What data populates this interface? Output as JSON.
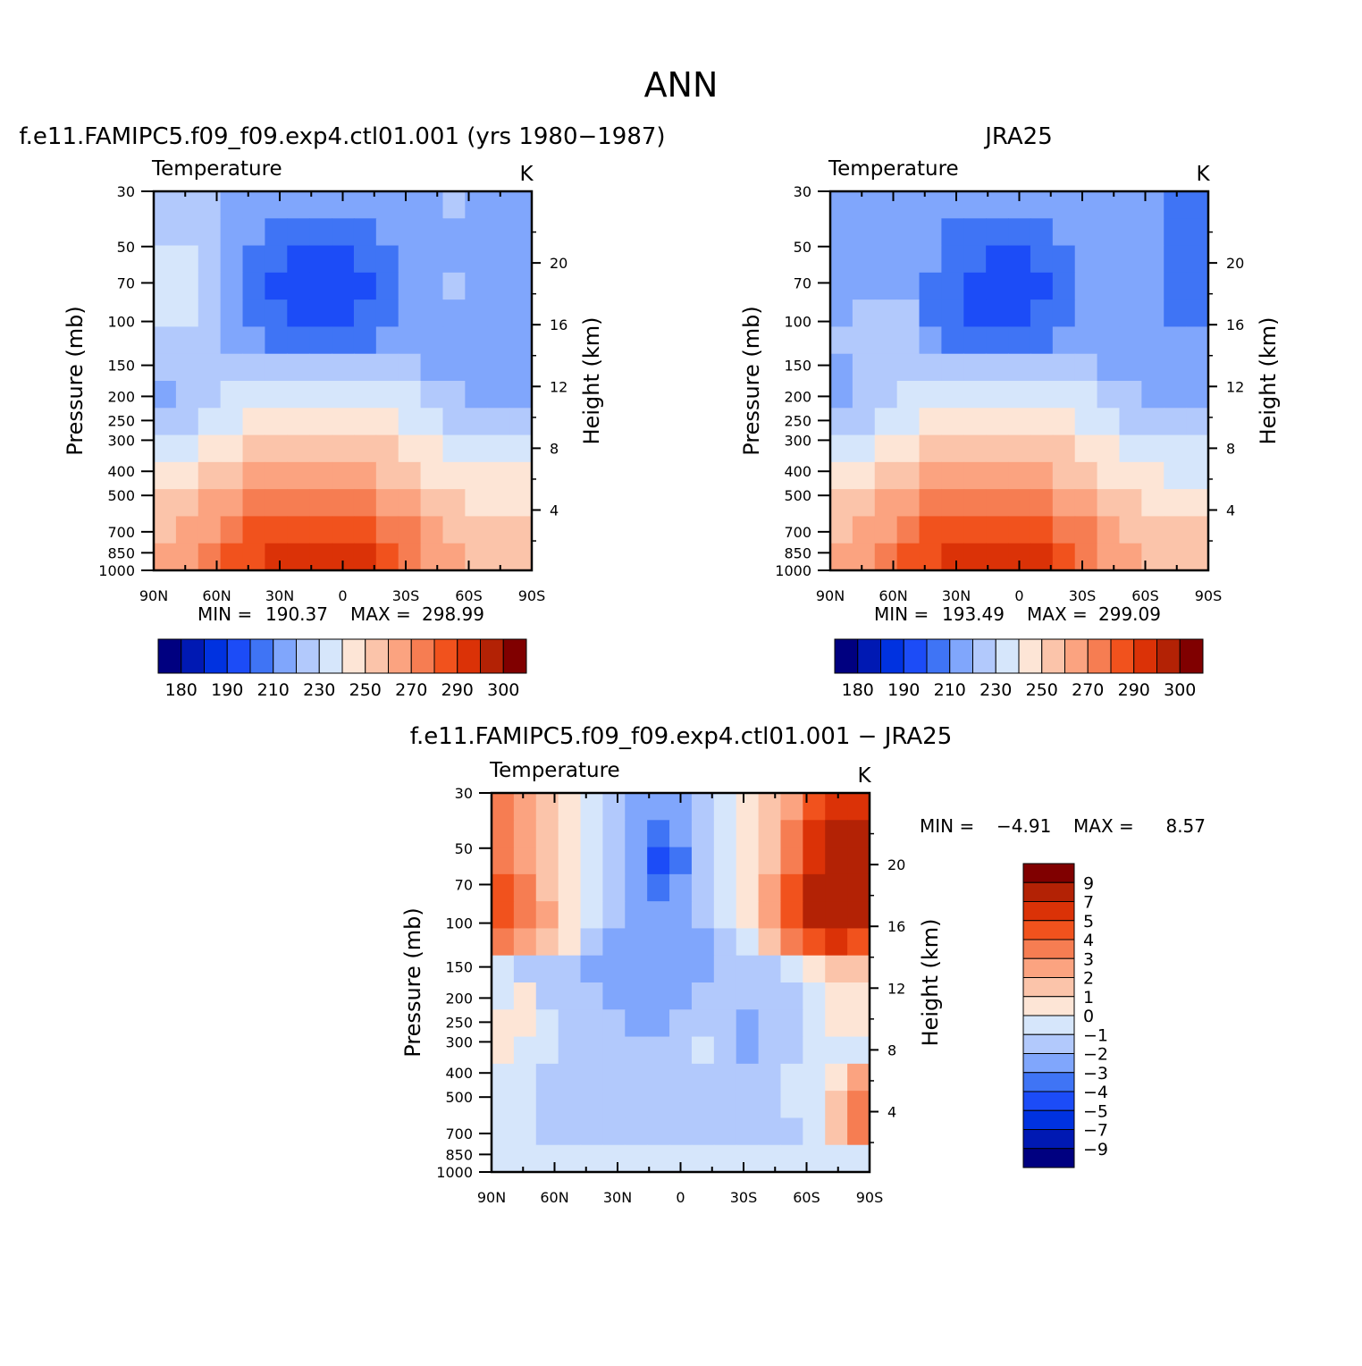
{
  "figure_title": "ANN",
  "colors": {
    "abs_levels": [
      "#000080",
      "#0019b3",
      "#0032e0",
      "#1c4cf7",
      "#3f74f5",
      "#80a6fc",
      "#b2c9fc",
      "#d6e6fb",
      "#fde5d6",
      "#fbc4aa",
      "#fba380",
      "#f67d52",
      "#f1521d",
      "#db3207",
      "#b32205",
      "#800000"
    ],
    "diff_levels": [
      "#000080",
      "#0019b3",
      "#0032e0",
      "#1c4cf7",
      "#3f74f5",
      "#80a6fc",
      "#b2c9fc",
      "#d6e6fb",
      "#fde5d6",
      "#fbc4aa",
      "#fba380",
      "#f67d52",
      "#f1521d",
      "#db3207",
      "#b32205",
      "#800000"
    ]
  },
  "chart_data": [
    {
      "type": "heatmap",
      "title": "f.e11.FAMIPC5.f09_f09.exp4.ctl01.001 (yrs 1980−1987)",
      "variable": "Temperature",
      "units": "K",
      "xlabel": "",
      "ylabel": "Pressure (mb)",
      "ylabel_right": "Height (km)",
      "x_ticks": [
        "90N",
        "60N",
        "30N",
        "0",
        "30S",
        "60S",
        "90S"
      ],
      "y_ticks": [
        "30",
        "50",
        "70",
        "100",
        "150",
        "200",
        "250",
        "300",
        "400",
        "500",
        "700",
        "850",
        "1000"
      ],
      "y_ticks_right": [
        "4",
        "8",
        "12",
        "16",
        "20"
      ],
      "min_label": "MIN =",
      "min_value": "190.37",
      "max_label": "MAX =",
      "max_value": "298.99",
      "colorbar_labels": [
        "180",
        "190",
        "210",
        "230",
        "250",
        "270",
        "290",
        "300"
      ],
      "field": [
        [
          6,
          6,
          6,
          5,
          5,
          5,
          5,
          5,
          5,
          5,
          5,
          5,
          5,
          6,
          5,
          5,
          5
        ],
        [
          6,
          6,
          6,
          5,
          5,
          4,
          4,
          4,
          4,
          4,
          5,
          5,
          5,
          5,
          5,
          5,
          5
        ],
        [
          7,
          7,
          6,
          5,
          4,
          4,
          3,
          3,
          3,
          4,
          4,
          5,
          5,
          5,
          5,
          5,
          5
        ],
        [
          7,
          7,
          6,
          5,
          4,
          3,
          3,
          3,
          3,
          3,
          4,
          5,
          5,
          6,
          5,
          5,
          5
        ],
        [
          7,
          7,
          6,
          5,
          4,
          4,
          3,
          3,
          3,
          4,
          4,
          5,
          5,
          5,
          5,
          5,
          5
        ],
        [
          6,
          6,
          6,
          5,
          5,
          4,
          4,
          4,
          4,
          4,
          5,
          5,
          5,
          5,
          5,
          5,
          5
        ],
        [
          6,
          6,
          6,
          6,
          6,
          6,
          6,
          6,
          6,
          6,
          6,
          6,
          5,
          5,
          5,
          5,
          5
        ],
        [
          5,
          6,
          6,
          7,
          7,
          7,
          7,
          7,
          7,
          7,
          7,
          7,
          6,
          6,
          5,
          5,
          5
        ],
        [
          6,
          6,
          7,
          7,
          8,
          8,
          8,
          8,
          8,
          8,
          8,
          7,
          7,
          6,
          6,
          6,
          6
        ],
        [
          7,
          7,
          8,
          8,
          9,
          9,
          9,
          9,
          9,
          9,
          9,
          8,
          8,
          7,
          7,
          7,
          7
        ],
        [
          8,
          8,
          9,
          9,
          10,
          10,
          10,
          10,
          10,
          10,
          9,
          9,
          8,
          8,
          8,
          8,
          8
        ],
        [
          9,
          9,
          10,
          10,
          11,
          11,
          11,
          11,
          11,
          11,
          10,
          10,
          9,
          9,
          8,
          8,
          8
        ],
        [
          9,
          10,
          10,
          11,
          12,
          12,
          12,
          12,
          12,
          12,
          11,
          11,
          10,
          9,
          9,
          9,
          9
        ],
        [
          10,
          10,
          11,
          12,
          12,
          13,
          13,
          13,
          13,
          13,
          12,
          11,
          10,
          10,
          9,
          9,
          9
        ]
      ]
    },
    {
      "type": "heatmap",
      "title": "JRA25",
      "variable": "Temperature",
      "units": "K",
      "xlabel": "",
      "ylabel": "Pressure (mb)",
      "ylabel_right": "Height (km)",
      "x_ticks": [
        "90N",
        "60N",
        "30N",
        "0",
        "30S",
        "60S",
        "90S"
      ],
      "y_ticks": [
        "30",
        "50",
        "70",
        "100",
        "150",
        "200",
        "250",
        "300",
        "400",
        "500",
        "700",
        "850",
        "1000"
      ],
      "y_ticks_right": [
        "4",
        "8",
        "12",
        "16",
        "20"
      ],
      "min_label": "MIN =",
      "min_value": "193.49",
      "max_label": "MAX =",
      "max_value": "299.09",
      "colorbar_labels": [
        "180",
        "190",
        "210",
        "230",
        "250",
        "270",
        "290",
        "300"
      ],
      "field": [
        [
          5,
          5,
          5,
          5,
          5,
          5,
          5,
          5,
          5,
          5,
          5,
          5,
          5,
          5,
          5,
          4,
          4
        ],
        [
          5,
          5,
          5,
          5,
          5,
          4,
          4,
          4,
          4,
          4,
          5,
          5,
          5,
          5,
          5,
          4,
          4
        ],
        [
          5,
          5,
          5,
          5,
          5,
          4,
          4,
          3,
          3,
          4,
          4,
          5,
          5,
          5,
          5,
          4,
          4
        ],
        [
          5,
          5,
          5,
          5,
          4,
          4,
          3,
          3,
          3,
          3,
          4,
          5,
          5,
          5,
          5,
          4,
          4
        ],
        [
          5,
          6,
          6,
          6,
          4,
          4,
          3,
          3,
          3,
          4,
          4,
          5,
          5,
          5,
          5,
          4,
          4
        ],
        [
          6,
          6,
          6,
          6,
          5,
          4,
          4,
          4,
          4,
          4,
          5,
          5,
          5,
          5,
          5,
          5,
          5
        ],
        [
          5,
          6,
          6,
          6,
          6,
          6,
          6,
          6,
          6,
          6,
          6,
          6,
          5,
          5,
          5,
          5,
          5
        ],
        [
          5,
          6,
          6,
          7,
          7,
          7,
          7,
          7,
          7,
          7,
          7,
          7,
          6,
          6,
          5,
          5,
          5
        ],
        [
          6,
          6,
          7,
          7,
          8,
          8,
          8,
          8,
          8,
          8,
          8,
          7,
          7,
          6,
          6,
          6,
          6
        ],
        [
          7,
          7,
          8,
          8,
          9,
          9,
          9,
          9,
          9,
          9,
          9,
          8,
          8,
          7,
          7,
          7,
          7
        ],
        [
          8,
          8,
          9,
          9,
          10,
          10,
          10,
          10,
          10,
          10,
          9,
          9,
          8,
          8,
          8,
          7,
          7
        ],
        [
          9,
          9,
          10,
          10,
          11,
          11,
          11,
          11,
          11,
          11,
          10,
          10,
          9,
          9,
          8,
          8,
          8
        ],
        [
          9,
          10,
          10,
          11,
          12,
          12,
          12,
          12,
          12,
          12,
          11,
          11,
          10,
          9,
          9,
          9,
          9
        ],
        [
          10,
          10,
          11,
          12,
          12,
          13,
          13,
          13,
          13,
          13,
          12,
          11,
          10,
          10,
          9,
          9,
          9
        ]
      ]
    },
    {
      "type": "heatmap",
      "title": "f.e11.FAMIPC5.f09_f09.exp4.ctl01.001 − JRA25",
      "variable": "Temperature",
      "units": "K",
      "xlabel": "",
      "ylabel": "Pressure (mb)",
      "ylabel_right": "Height (km)",
      "x_ticks": [
        "90N",
        "60N",
        "30N",
        "0",
        "30S",
        "60S",
        "90S"
      ],
      "y_ticks": [
        "30",
        "50",
        "70",
        "100",
        "150",
        "200",
        "250",
        "300",
        "400",
        "500",
        "700",
        "850",
        "1000"
      ],
      "y_ticks_right": [
        "4",
        "8",
        "12",
        "16",
        "20"
      ],
      "min_label": "MIN =",
      "min_value": "−4.91",
      "max_label": "MAX =",
      "max_value": "8.57",
      "colorbar_labels": [
        "9",
        "7",
        "5",
        "4",
        "3",
        "2",
        "1",
        "0",
        "−1",
        "−2",
        "−3",
        "−4",
        "−5",
        "−7",
        "−9"
      ],
      "field": [
        [
          11,
          10,
          9,
          8,
          7,
          6,
          5,
          5,
          5,
          6,
          7,
          8,
          9,
          10,
          12,
          13,
          13
        ],
        [
          11,
          10,
          9,
          8,
          7,
          6,
          5,
          4,
          5,
          6,
          7,
          8,
          9,
          11,
          13,
          14,
          14
        ],
        [
          11,
          10,
          9,
          8,
          7,
          6,
          5,
          3,
          4,
          6,
          7,
          8,
          9,
          11,
          13,
          14,
          14
        ],
        [
          12,
          11,
          9,
          8,
          7,
          6,
          5,
          4,
          5,
          6,
          7,
          8,
          10,
          12,
          14,
          14,
          14
        ],
        [
          12,
          11,
          10,
          8,
          7,
          6,
          5,
          5,
          5,
          6,
          7,
          8,
          10,
          12,
          14,
          14,
          14
        ],
        [
          11,
          10,
          9,
          8,
          6,
          5,
          5,
          5,
          5,
          5,
          6,
          7,
          9,
          11,
          12,
          13,
          12
        ],
        [
          7,
          6,
          6,
          6,
          5,
          5,
          5,
          5,
          5,
          5,
          6,
          6,
          6,
          7,
          8,
          9,
          9
        ],
        [
          7,
          8,
          6,
          6,
          6,
          5,
          5,
          5,
          5,
          6,
          6,
          6,
          6,
          6,
          7,
          8,
          8
        ],
        [
          8,
          8,
          7,
          6,
          6,
          6,
          5,
          5,
          6,
          6,
          6,
          5,
          6,
          6,
          7,
          8,
          8
        ],
        [
          8,
          7,
          7,
          6,
          6,
          6,
          6,
          6,
          6,
          7,
          6,
          5,
          6,
          6,
          7,
          7,
          7
        ],
        [
          7,
          7,
          6,
          6,
          6,
          6,
          6,
          6,
          6,
          6,
          6,
          6,
          6,
          7,
          7,
          8,
          10
        ],
        [
          7,
          7,
          6,
          6,
          6,
          6,
          6,
          6,
          6,
          6,
          6,
          6,
          6,
          7,
          7,
          9,
          11
        ],
        [
          7,
          7,
          6,
          6,
          6,
          6,
          6,
          6,
          6,
          6,
          6,
          6,
          6,
          6,
          7,
          9,
          11
        ],
        [
          7,
          7,
          7,
          7,
          7,
          7,
          7,
          7,
          7,
          7,
          7,
          7,
          7,
          7,
          7,
          7,
          7
        ]
      ]
    }
  ]
}
